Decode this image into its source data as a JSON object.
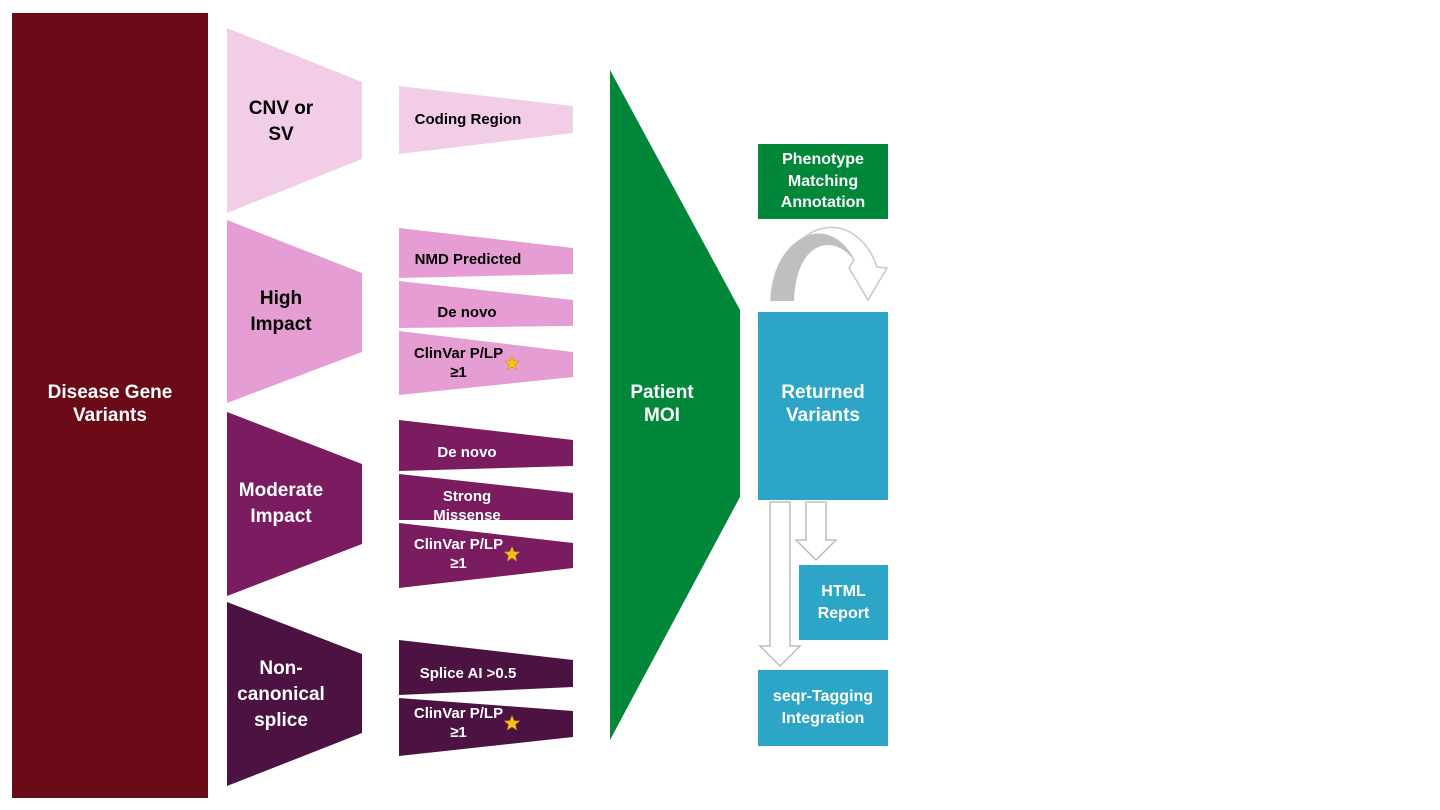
{
  "colors": {
    "root": "#6a0a17",
    "cnv": "#f2cde8",
    "high": "#e69dd4",
    "moderate": "#7b1c60",
    "splice": "#4c1241",
    "moi": "#01873a",
    "phenotype": "#00873a",
    "returned": "#2da5c6",
    "arrow": "#bdbdbd",
    "star": "#f6c21a"
  },
  "root": {
    "label": "Disease Gene\nVariants"
  },
  "categories": [
    {
      "key": "cnv",
      "label": "CNV or\nSV",
      "filters": [
        {
          "label": "Coding Region",
          "star_suffix": ""
        }
      ]
    },
    {
      "key": "high",
      "label": "High\nImpact",
      "filters": [
        {
          "label": "NMD Predicted",
          "star_suffix": ""
        },
        {
          "label": "De novo",
          "star_suffix": ""
        },
        {
          "label": "ClinVar P/LP\n≥1",
          "star_suffix": "star"
        }
      ]
    },
    {
      "key": "moderate",
      "label": "Moderate\nImpact",
      "filters": [
        {
          "label": "De novo",
          "star_suffix": ""
        },
        {
          "label": "Strong\nMissense",
          "star_suffix": ""
        },
        {
          "label": "ClinVar P/LP\n≥1",
          "star_suffix": "star"
        }
      ]
    },
    {
      "key": "splice",
      "label": "Non-\ncanonical\nsplice",
      "filters": [
        {
          "label": "Splice AI >0.5",
          "star_suffix": ""
        },
        {
          "label": "ClinVar P/LP\n≥1",
          "star_suffix": "star"
        }
      ]
    }
  ],
  "moi": {
    "label": "Patient\nMOI"
  },
  "phenotype": {
    "label": "Phenotype\nMatching\nAnnotation"
  },
  "returned": {
    "label": "Returned\nVariants"
  },
  "html_report": {
    "label": "HTML\nReport"
  },
  "seqr": {
    "label": "seqr-Tagging\nIntegration"
  }
}
